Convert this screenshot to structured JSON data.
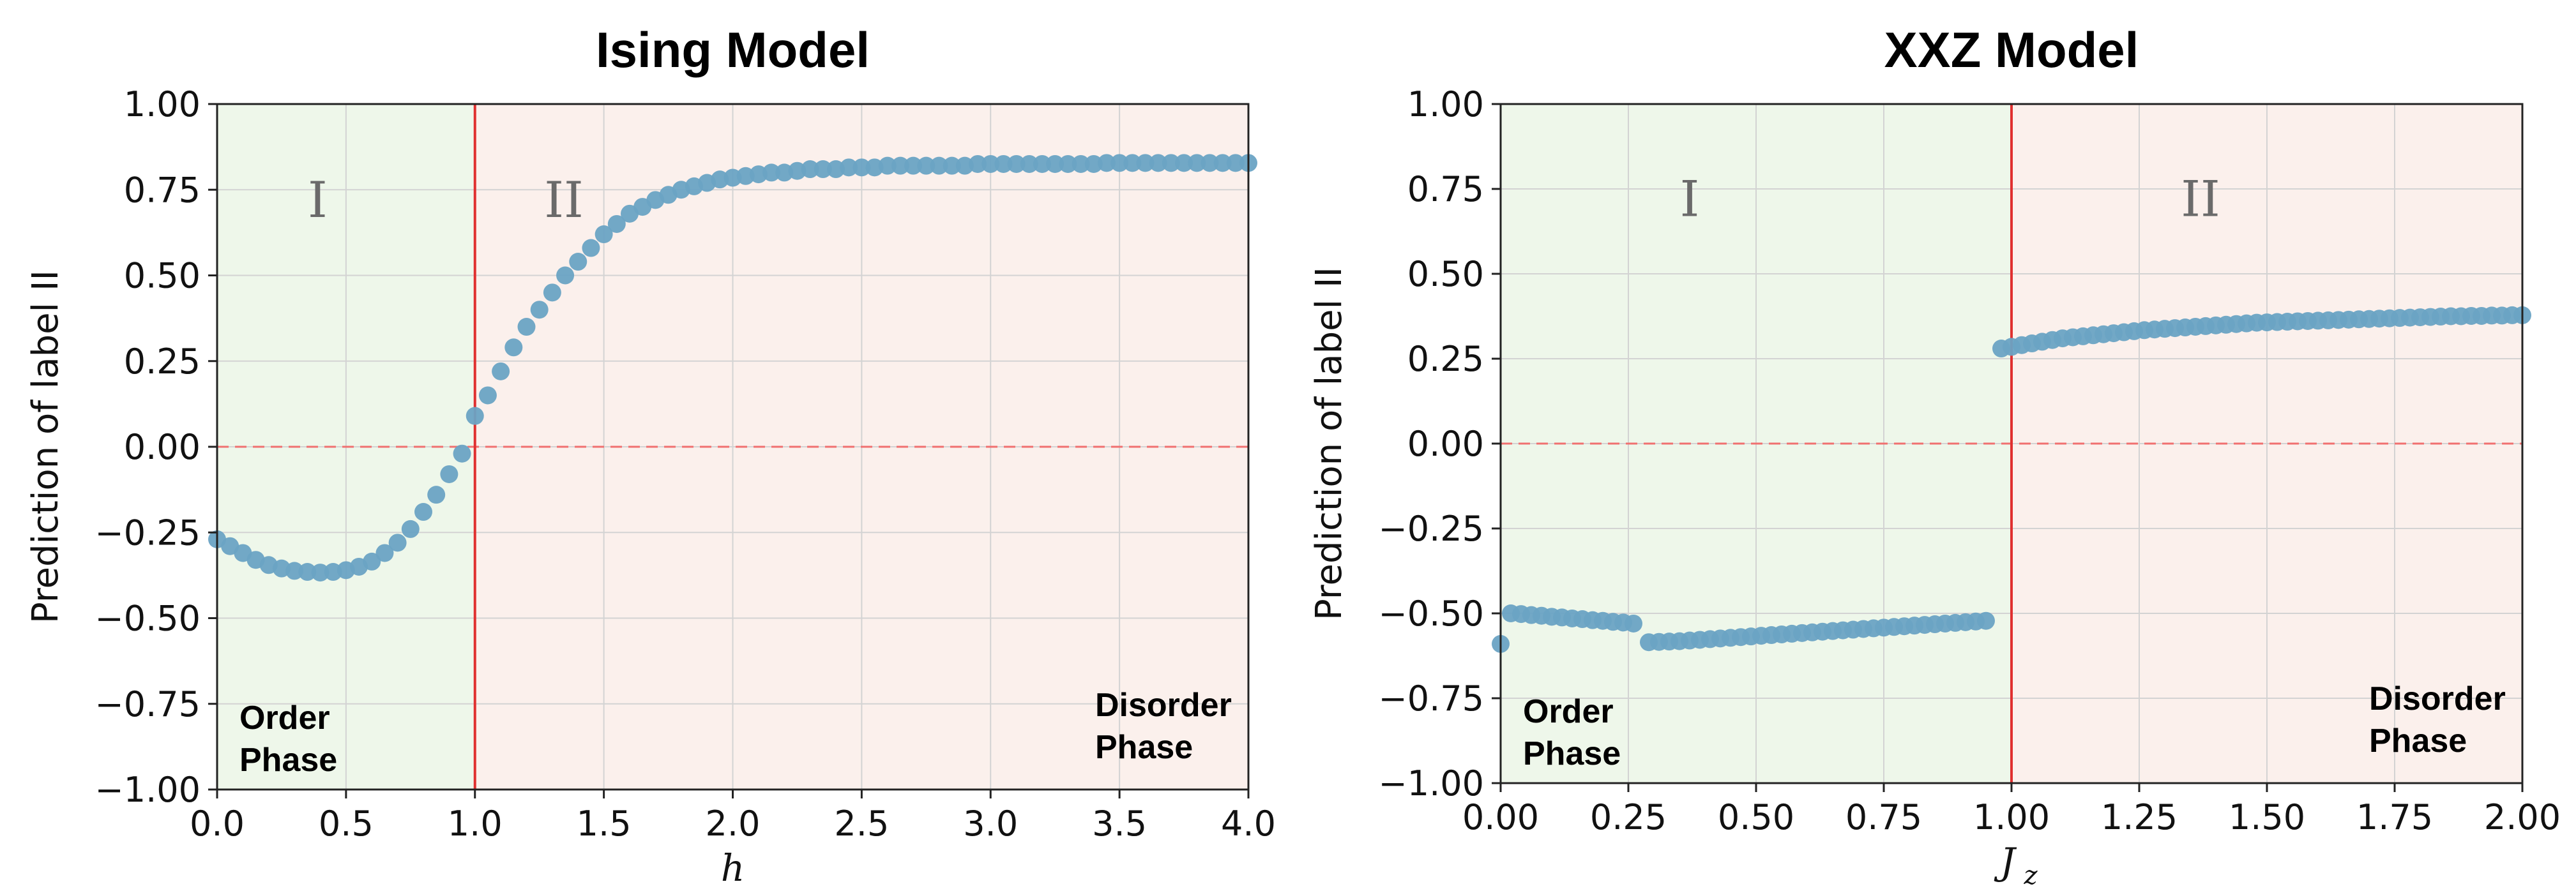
{
  "chart_data": [
    {
      "type": "scatter",
      "title": "Ising Model",
      "xlabel": "h",
      "ylabel": "Prediction of label II",
      "xlim": [
        0.0,
        4.0
      ],
      "ylim": [
        -1.0,
        1.0
      ],
      "xticks": [
        "0.0",
        "0.5",
        "1.0",
        "1.5",
        "2.0",
        "2.5",
        "3.0",
        "3.5",
        "4.0"
      ],
      "yticks": [
        "−1.00",
        "−0.75",
        "−0.50",
        "−0.25",
        "0.00",
        "0.25",
        "0.50",
        "0.75",
        "1.00"
      ],
      "grid": true,
      "critical_x": 1.0,
      "zero_line_y": 0.0,
      "regions": [
        {
          "label": "I",
          "from": 0.0,
          "to": 1.0,
          "color": "#eef7ea"
        },
        {
          "label": "II",
          "from": 1.0,
          "to": 4.0,
          "color": "#fbf0ec"
        }
      ],
      "phase_labels": [
        {
          "line1": "Order",
          "line2": "Phase",
          "side": "bottom-left"
        },
        {
          "line1": "Disorder",
          "line2": "Phase",
          "side": "bottom-right"
        }
      ],
      "region_label_y": 0.67,
      "marker_color": "#6aa3c4",
      "x": [
        0.0,
        0.05,
        0.1,
        0.15,
        0.2,
        0.25,
        0.3,
        0.35,
        0.4,
        0.45,
        0.5,
        0.55,
        0.6,
        0.65,
        0.7,
        0.75,
        0.8,
        0.85,
        0.9,
        0.95,
        1.0,
        1.05,
        1.1,
        1.15,
        1.2,
        1.25,
        1.3,
        1.35,
        1.4,
        1.45,
        1.5,
        1.55,
        1.6,
        1.65,
        1.7,
        1.75,
        1.8,
        1.85,
        1.9,
        1.95,
        2.0,
        2.05,
        2.1,
        2.15,
        2.2,
        2.25,
        2.3,
        2.35,
        2.4,
        2.45,
        2.5,
        2.55,
        2.6,
        2.65,
        2.7,
        2.75,
        2.8,
        2.85,
        2.9,
        2.95,
        3.0,
        3.05,
        3.1,
        3.15,
        3.2,
        3.25,
        3.3,
        3.35,
        3.4,
        3.45,
        3.5,
        3.55,
        3.6,
        3.65,
        3.7,
        3.75,
        3.8,
        3.85,
        3.9,
        3.95,
        4.0
      ],
      "y": [
        -0.27,
        -0.29,
        -0.31,
        -0.33,
        -0.345,
        -0.355,
        -0.362,
        -0.365,
        -0.367,
        -0.365,
        -0.36,
        -0.35,
        -0.335,
        -0.31,
        -0.28,
        -0.24,
        -0.19,
        -0.14,
        -0.08,
        -0.02,
        0.09,
        0.15,
        0.22,
        0.29,
        0.35,
        0.4,
        0.45,
        0.5,
        0.54,
        0.58,
        0.62,
        0.65,
        0.68,
        0.7,
        0.72,
        0.735,
        0.75,
        0.76,
        0.77,
        0.78,
        0.785,
        0.79,
        0.795,
        0.8,
        0.8,
        0.805,
        0.81,
        0.81,
        0.81,
        0.815,
        0.815,
        0.815,
        0.82,
        0.82,
        0.82,
        0.82,
        0.82,
        0.82,
        0.82,
        0.825,
        0.825,
        0.825,
        0.825,
        0.825,
        0.825,
        0.825,
        0.825,
        0.825,
        0.825,
        0.828,
        0.828,
        0.828,
        0.828,
        0.828,
        0.828,
        0.828,
        0.828,
        0.828,
        0.828,
        0.828,
        0.828
      ]
    },
    {
      "type": "scatter",
      "title": "XXZ Model",
      "xlabel": "J",
      "xlabel_sub": "z",
      "ylabel": "Prediction of label II",
      "xlim": [
        0.0,
        2.0
      ],
      "ylim": [
        -1.0,
        1.0
      ],
      "xticks": [
        "0.00",
        "0.25",
        "0.50",
        "0.75",
        "1.00",
        "1.25",
        "1.50",
        "1.75",
        "2.00"
      ],
      "yticks": [
        "−1.00",
        "−0.75",
        "−0.50",
        "−0.25",
        "0.00",
        "0.25",
        "0.50",
        "0.75",
        "1.00"
      ],
      "grid": true,
      "critical_x": 1.0,
      "zero_line_y": 0.0,
      "regions": [
        {
          "label": "I",
          "from": 0.0,
          "to": 1.0,
          "color": "#eef7ea"
        },
        {
          "label": "II",
          "from": 1.0,
          "to": 2.0,
          "color": "#fbf0ec"
        }
      ],
      "phase_labels": [
        {
          "line1": "Order",
          "line2": "Phase",
          "side": "bottom-left"
        },
        {
          "line1": "Disorder",
          "line2": "Phase",
          "side": "bottom-right"
        }
      ],
      "region_label_y": 0.67,
      "marker_color": "#6aa3c4",
      "x": [
        0.0,
        0.02,
        0.04,
        0.06,
        0.08,
        0.1,
        0.12,
        0.14,
        0.16,
        0.18,
        0.2,
        0.22,
        0.24,
        0.26,
        0.29,
        0.31,
        0.33,
        0.35,
        0.37,
        0.39,
        0.41,
        0.43,
        0.45,
        0.47,
        0.49,
        0.51,
        0.53,
        0.55,
        0.57,
        0.59,
        0.61,
        0.63,
        0.65,
        0.67,
        0.69,
        0.71,
        0.73,
        0.75,
        0.77,
        0.79,
        0.81,
        0.83,
        0.85,
        0.87,
        0.89,
        0.91,
        0.93,
        0.95,
        0.98,
        1.0,
        1.02,
        1.04,
        1.06,
        1.08,
        1.1,
        1.12,
        1.14,
        1.16,
        1.18,
        1.2,
        1.22,
        1.24,
        1.26,
        1.28,
        1.3,
        1.32,
        1.34,
        1.36,
        1.38,
        1.4,
        1.42,
        1.44,
        1.46,
        1.48,
        1.5,
        1.52,
        1.54,
        1.56,
        1.58,
        1.6,
        1.62,
        1.64,
        1.66,
        1.68,
        1.7,
        1.72,
        1.74,
        1.76,
        1.78,
        1.8,
        1.82,
        1.84,
        1.86,
        1.88,
        1.9,
        1.92,
        1.94,
        1.96,
        1.98,
        2.0
      ],
      "y": [
        -0.59,
        -0.5,
        -0.502,
        -0.505,
        -0.507,
        -0.51,
        -0.512,
        -0.515,
        -0.517,
        -0.52,
        -0.522,
        -0.525,
        -0.527,
        -0.53,
        -0.585,
        -0.584,
        -0.583,
        -0.582,
        -0.58,
        -0.578,
        -0.576,
        -0.574,
        -0.572,
        -0.57,
        -0.568,
        -0.566,
        -0.564,
        -0.562,
        -0.56,
        -0.558,
        -0.556,
        -0.554,
        -0.552,
        -0.55,
        -0.548,
        -0.546,
        -0.544,
        -0.542,
        -0.54,
        -0.538,
        -0.536,
        -0.534,
        -0.532,
        -0.53,
        -0.528,
        -0.526,
        -0.524,
        -0.522,
        0.28,
        0.285,
        0.29,
        0.295,
        0.3,
        0.305,
        0.31,
        0.313,
        0.316,
        0.319,
        0.322,
        0.325,
        0.328,
        0.331,
        0.334,
        0.336,
        0.338,
        0.34,
        0.342,
        0.344,
        0.346,
        0.348,
        0.35,
        0.352,
        0.354,
        0.356,
        0.357,
        0.358,
        0.359,
        0.36,
        0.361,
        0.362,
        0.363,
        0.364,
        0.365,
        0.366,
        0.367,
        0.368,
        0.369,
        0.37,
        0.371,
        0.372,
        0.373,
        0.374,
        0.375,
        0.375,
        0.376,
        0.376,
        0.377,
        0.377,
        0.378,
        0.378
      ]
    }
  ]
}
